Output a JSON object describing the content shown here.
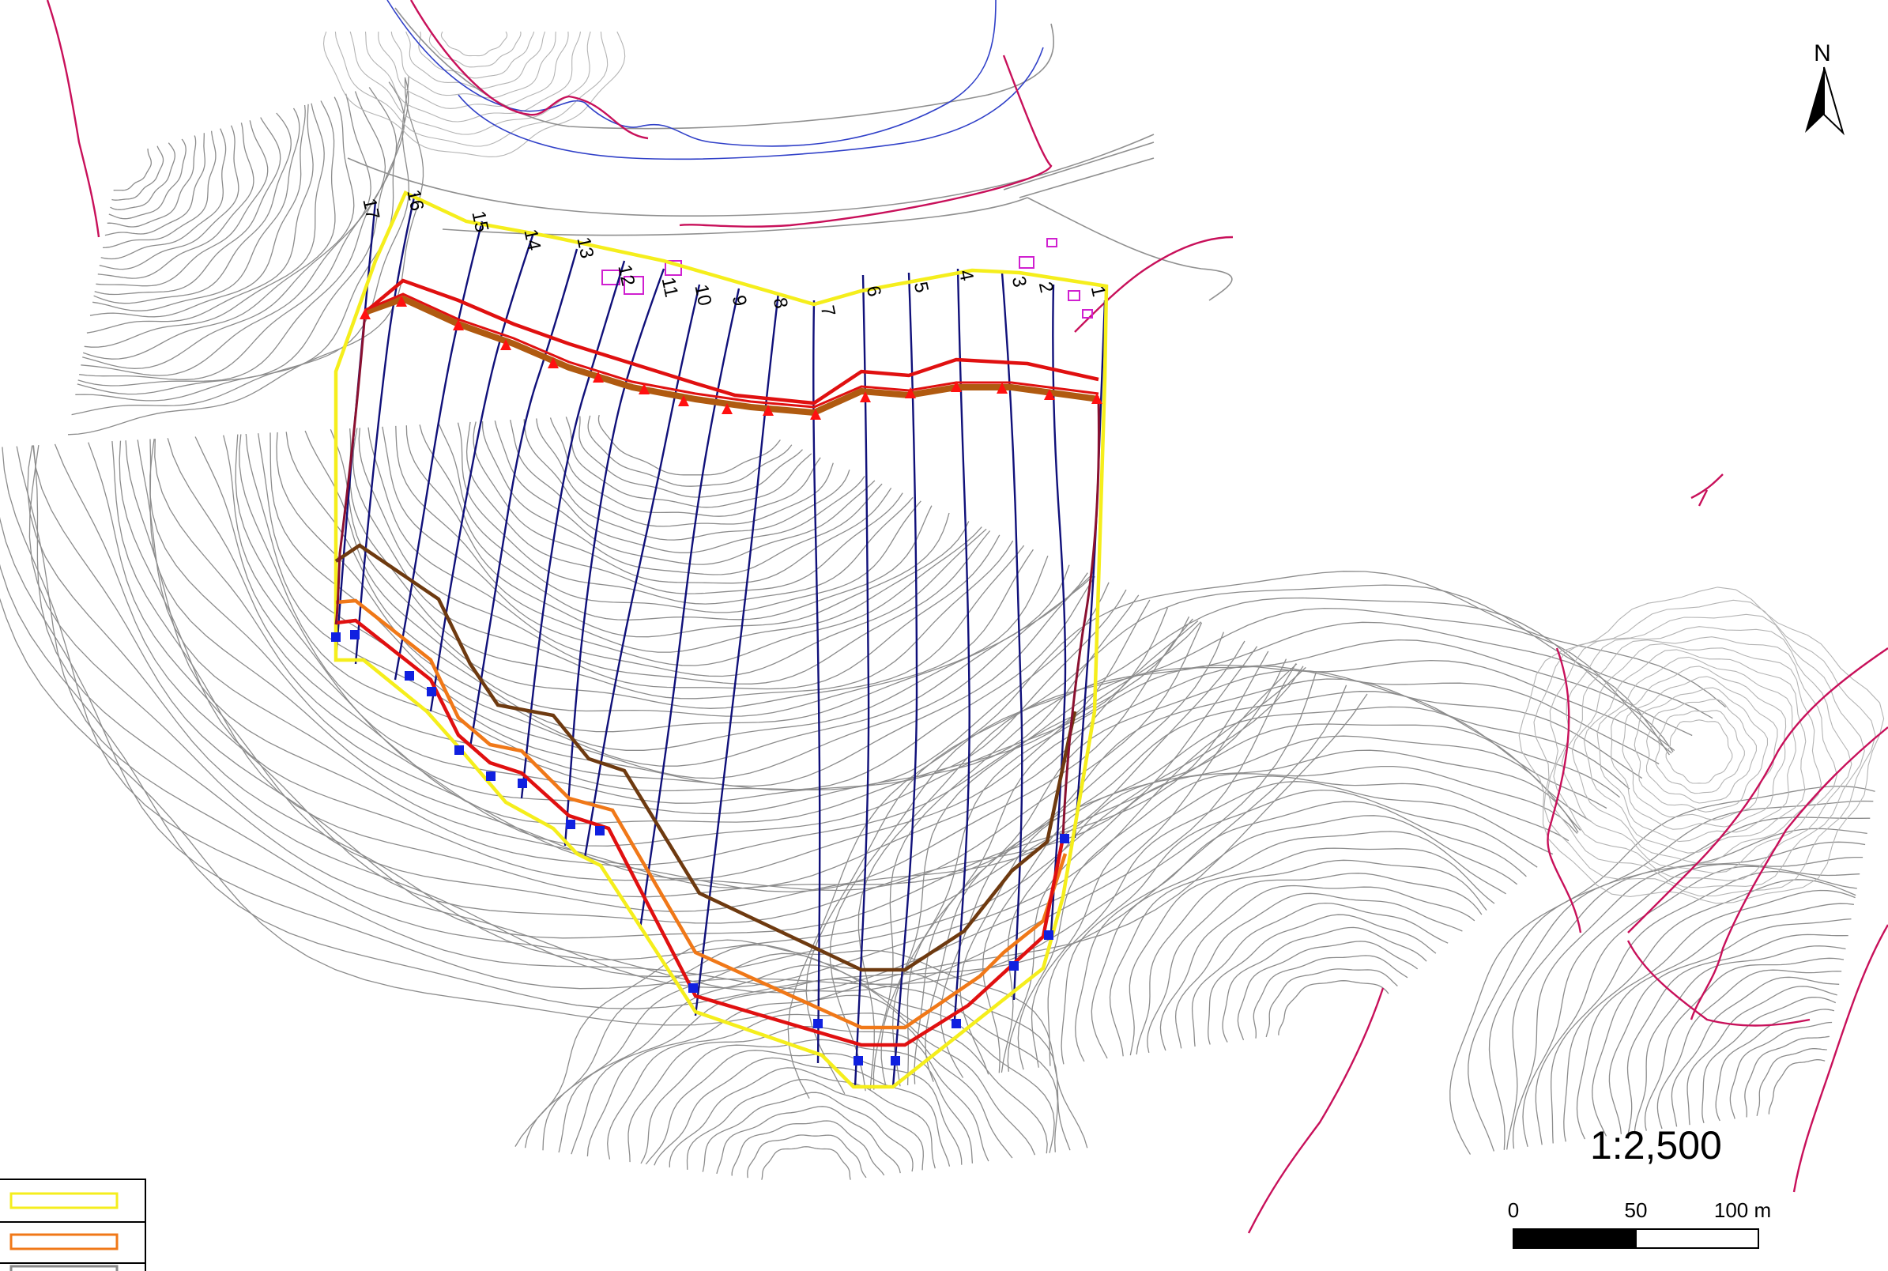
{
  "map": {
    "scale_ratio": "1:2,500",
    "north_label": "N",
    "scale_bar": {
      "labels": [
        "0",
        "50",
        "100 m"
      ]
    },
    "section_labels": [
      "1",
      "2",
      "3",
      "4",
      "5",
      "6",
      "7",
      "8",
      "9",
      "10",
      "11",
      "12",
      "13",
      "14",
      "15",
      "16",
      "17"
    ],
    "colors": {
      "boundary_yellow": "#f5ee1c",
      "line_orange": "#f07818",
      "line_red": "#e01010",
      "line_brown": "#6e3a10",
      "line_thick_brown": "#b05a10",
      "section_navy": "#10107a",
      "marker_triangle": "#ff1010",
      "marker_square": "#1020e0",
      "contour_gray": "#8c8c8c",
      "magenta": "#c8105a",
      "river_blue": "#3040c8"
    },
    "legend": {
      "rows": [
        {
          "swatch_color": "#f5ee1c",
          "label": ""
        },
        {
          "swatch_color": "#f07818",
          "label": ""
        },
        {
          "swatch_color": "#888888",
          "label": ""
        }
      ]
    }
  }
}
